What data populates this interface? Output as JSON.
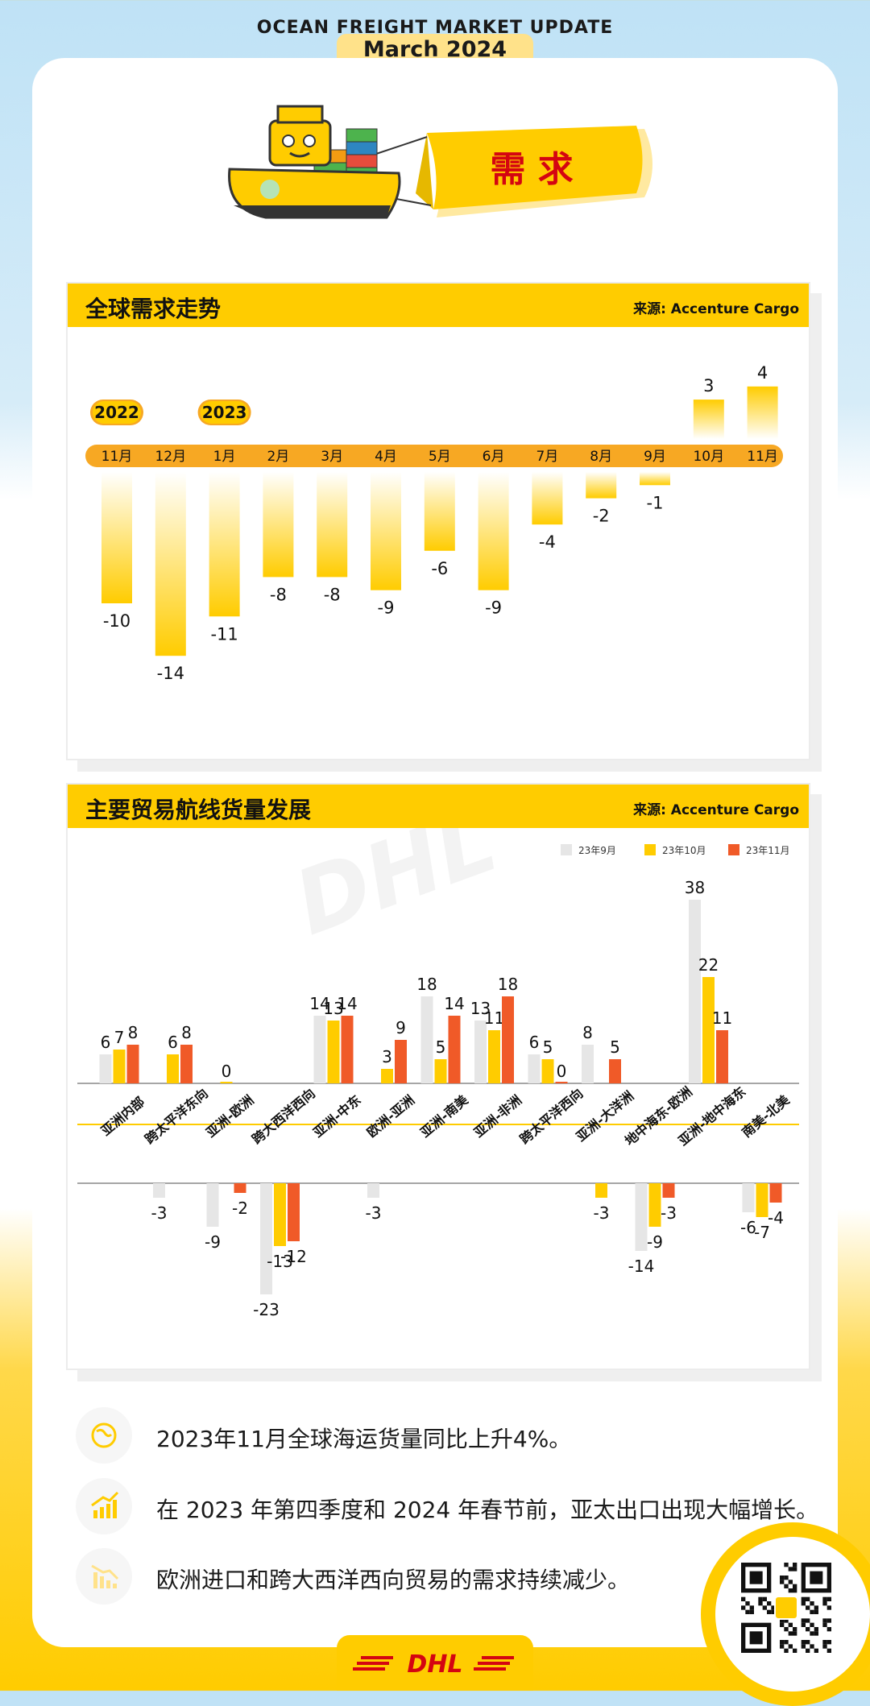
{
  "header": {
    "line1": "OCEAN FREIGHT MARKET UPDATE",
    "line2": "March 2024"
  },
  "banner": {
    "label": "需 求"
  },
  "panel1": {
    "title": "全球需求走势",
    "source": "来源: Accenture Cargo",
    "year_tags": [
      "2022",
      "2023"
    ]
  },
  "panel2": {
    "title": "主要贸易航线货量发展",
    "source": "来源: Accenture Cargo"
  },
  "chart_data": [
    {
      "type": "bar",
      "title": "全球需求走势",
      "categories": [
        "11月",
        "12月",
        "1月",
        "2月",
        "3月",
        "4月",
        "5月",
        "6月",
        "7月",
        "8月",
        "9月",
        "10月",
        "11月"
      ],
      "values": [
        -10,
        -14,
        -11,
        -8,
        -8,
        -9,
        -6,
        -9,
        -4,
        -2,
        -1,
        3,
        4
      ],
      "year_markers": [
        {
          "label": "2022",
          "at": "11月"
        },
        {
          "label": "2023",
          "at": "1月"
        }
      ]
    },
    {
      "type": "bar",
      "title": "主要贸易航线货量发展",
      "categories": [
        "亚洲内部",
        "跨太平洋东向",
        "亚洲-欧洲",
        "跨大西洋西向",
        "亚洲-中东",
        "欧洲-亚洲",
        "亚洲-南美",
        "亚洲-非洲",
        "跨太平洋西向",
        "亚洲-大洋洲",
        "地中海东-欧洲",
        "亚洲-地中海东",
        "南美-北美"
      ],
      "series": [
        {
          "name": "23年9月",
          "color": "#e6e6e6",
          "values": [
            6,
            -3,
            -9,
            -23,
            14,
            -3,
            18,
            13,
            6,
            8,
            -14,
            38,
            -6
          ]
        },
        {
          "name": "23年10月",
          "color": "#ffcc00",
          "values": [
            7,
            6,
            0,
            -13,
            13,
            3,
            5,
            11,
            5,
            -3,
            -9,
            22,
            -7
          ]
        },
        {
          "name": "23年11月",
          "color": "#f05a28",
          "values": [
            8,
            8,
            -2,
            -12,
            14,
            9,
            14,
            18,
            0,
            5,
            -3,
            11,
            -4
          ]
        }
      ],
      "labels": [
        [
          "6",
          "7",
          "8"
        ],
        [
          "-3",
          "6",
          "8"
        ],
        [
          "-9",
          "0",
          "-2"
        ],
        [
          "-23",
          "-13",
          "-12"
        ],
        [
          "14",
          "13",
          "14"
        ],
        [
          "-3",
          "3",
          "9"
        ],
        [
          "18",
          "5",
          "14"
        ],
        [
          "13",
          "11",
          "18"
        ],
        [
          "6",
          "5",
          "0"
        ],
        [
          "8",
          "-3",
          "5"
        ],
        [
          "-14",
          "-9",
          "-3"
        ],
        [
          "38",
          "22",
          "11"
        ],
        [
          "-6",
          "-7",
          "-4"
        ]
      ]
    }
  ],
  "bullets": [
    {
      "icon": "globe-icon",
      "text": "2023年11月全球海运货量同比上升4%。"
    },
    {
      "icon": "rising-chart-icon",
      "text": "在 2023 年第四季度和 2024 年春节前，亚太出口出现大幅增长。"
    },
    {
      "icon": "falling-chart-icon",
      "text": "欧洲进口和跨大西洋西向贸易的需求持续减少。"
    }
  ],
  "footer": {
    "logo_text": "DHL"
  },
  "colors": {
    "yellow": "#ffcc00",
    "red": "#d40511",
    "orange": "#f05a28",
    "grey": "#e6e6e6"
  }
}
